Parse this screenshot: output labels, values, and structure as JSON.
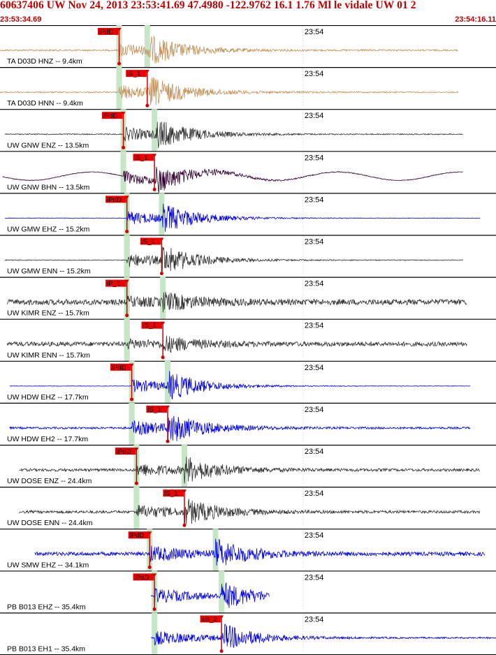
{
  "header": {
    "title": "60637406 UW Nov 24, 2013 23:53:41.69    47.4980 -122.9762 16.1 1.76 Ml le vidale UW 01    2",
    "start_time": "23:53:34.69",
    "end_time": "23:54:16.11"
  },
  "colors": {
    "accent": "#c00000",
    "pick_box": "#ee0000",
    "pick_window": "#c6e6c6",
    "separator": "#000000"
  },
  "chart_data": {
    "type": "line",
    "description_units": "x values in seconds after 23:53:34.69",
    "xlim": [
      0,
      41.42
    ],
    "minute_tick": {
      "label": "23:54",
      "t": 25.31
    },
    "panels": [
      {
        "label": "TA D03D HNZ -- 9.4km",
        "color": "#c4925a",
        "pick_label": "iPdD",
        "pick_t": 9.95,
        "s_t": 12.3,
        "onset_t": 9.95,
        "amp": 1.0,
        "noise": 0.06,
        "trace_start": 0.0,
        "trace_end": 38.3,
        "window_t": 12.3
      },
      {
        "label": "TA D03D HNN -- 9.4km",
        "color": "#c4925a",
        "pick_label": "iS_1",
        "pick_t": 12.3,
        "s_t": 12.5,
        "onset_t": 9.95,
        "amp": 1.0,
        "noise": 0.05,
        "trace_start": 0.0,
        "trace_end": 38.3,
        "window_t": 9.95
      },
      {
        "label": "UW GNW ENZ -- 13.5km",
        "color": "#333333",
        "pick_label": "iPdD",
        "pick_t": 10.3,
        "s_t": 13.0,
        "onset_t": 10.3,
        "amp": 1.0,
        "noise": 0.04,
        "trace_start": 0.4,
        "trace_end": 38.7,
        "window_t": 12.9
      },
      {
        "label": "UW GNW BHN -- 13.5km",
        "color": "#300030",
        "pick_label": "iS_1",
        "pick_t": 12.9,
        "s_t": 13.0,
        "onset_t": 10.3,
        "amp": 0.9,
        "noise": 0.03,
        "trace_start": 0.2,
        "trace_end": 38.7,
        "window_t": 10.3,
        "wave": 0.5
      },
      {
        "label": "UW GMW EHZ -- 15.2km",
        "color": "#0000ee",
        "pick_label": "iPdD",
        "pick_t": 10.6,
        "s_t": 13.5,
        "onset_t": 10.6,
        "amp": 1.0,
        "noise": 0.02,
        "trace_start": 0.4,
        "trace_end": 40.1,
        "window_t": 13.5
      },
      {
        "label": "UW GMW ENN -- 15.2km",
        "color": "#333333",
        "pick_label": "iS_1",
        "pick_t": 13.5,
        "s_t": 13.5,
        "onset_t": 10.6,
        "amp": 1.0,
        "noise": 0.03,
        "trace_start": 0.4,
        "trace_end": 38.7,
        "window_t": 10.6
      },
      {
        "label": "UW KIMR ENZ -- 15.7km",
        "color": "#333333",
        "pick_label": "iP_1",
        "pick_t": 10.6,
        "s_t": 13.6,
        "onset_t": 10.6,
        "amp": 0.55,
        "noise": 0.4,
        "trace_start": 0.6,
        "trace_end": 39.0,
        "window_t": 13.6
      },
      {
        "label": "UW KIMR ENN -- 15.7km",
        "color": "#333333",
        "pick_label": "iS_1",
        "pick_t": 13.6,
        "s_t": 13.6,
        "onset_t": 10.6,
        "amp": 0.5,
        "noise": 0.35,
        "trace_start": 0.6,
        "trace_end": 39.0,
        "window_t": 10.6
      },
      {
        "label": "UW HDW EHZ -- 17.7km",
        "color": "#0000ee",
        "pick_label": "iPdD",
        "pick_t": 11.0,
        "s_t": 14.0,
        "onset_t": 11.0,
        "amp": 1.0,
        "noise": 0.02,
        "trace_start": 0.8,
        "trace_end": 39.3,
        "window_t": 14.0
      },
      {
        "label": "UW HDW EH2 -- 17.7km",
        "color": "#0000ee",
        "pick_label": "iS_1",
        "pick_t": 14.0,
        "s_t": 14.0,
        "onset_t": 11.0,
        "amp": 1.0,
        "noise": 0.08,
        "trace_start": 0.8,
        "trace_end": 39.3,
        "window_t": 11.0
      },
      {
        "label": "UW DOSE ENZ -- 24.4km",
        "color": "#333333",
        "pick_label": "iPdD",
        "pick_t": 11.4,
        "s_t": 15.4,
        "onset_t": 11.4,
        "amp": 0.9,
        "noise": 0.12,
        "trace_start": 1.6,
        "trace_end": 40.1,
        "window_t": 15.4
      },
      {
        "label": "UW DOSE ENN -- 24.4km",
        "color": "#333333",
        "pick_label": "iS_1",
        "pick_t": 15.4,
        "s_t": 15.4,
        "onset_t": 11.4,
        "amp": 0.9,
        "noise": 0.12,
        "trace_start": 1.6,
        "trace_end": 40.1,
        "window_t": 11.4
      },
      {
        "label": "UW SMW EHZ -- 34.1km",
        "color": "#0000ee",
        "pick_label": "iPdD",
        "pick_t": 12.5,
        "s_t": 18.0,
        "onset_t": 12.5,
        "amp": 1.0,
        "noise": 0.15,
        "trace_start": 2.9,
        "trace_end": 40.5,
        "window_t": 18.0
      },
      {
        "label": "PB B013 EHZ -- 35.4km",
        "color": "#0000ee",
        "pick_label": "iPdD",
        "pick_t": 12.9,
        "s_t": 18.5,
        "onset_t": 12.9,
        "amp": 1.0,
        "noise": 0.08,
        "trace_start": 12.6,
        "trace_end": 22.5,
        "window_t": 18.5
      },
      {
        "label": "PB B013 EH1 -- 35.4km",
        "color": "#0000ee",
        "pick_label": "eS_2",
        "pick_t": 18.5,
        "s_t": 18.6,
        "onset_t": 12.9,
        "amp": 1.0,
        "noise": 0.06,
        "trace_start": 12.6,
        "trace_end": 41.4,
        "window_t": 12.9
      }
    ]
  }
}
